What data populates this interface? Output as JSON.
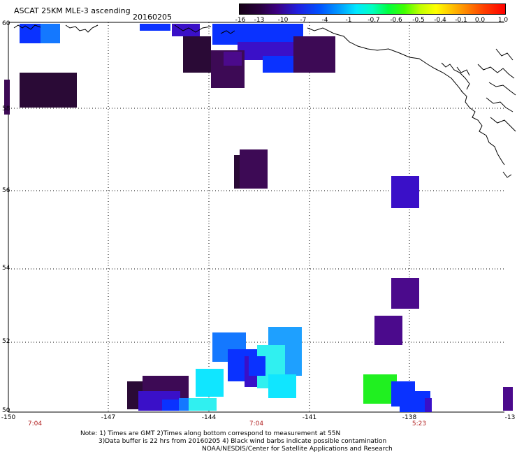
{
  "header": {
    "title": "ASCAT 25KM MLE-3 ascending",
    "date": "20160205"
  },
  "colorbar": {
    "labels": [
      "-16",
      "-13",
      "-10",
      "-7",
      "-4",
      "-1",
      "-0.7",
      "-0.6",
      "-0.5",
      "-0.4",
      "-0.1",
      "0.0",
      "1.0"
    ]
  },
  "axes": {
    "lon_ticks": [
      "-150",
      "-147",
      "-144",
      "-141",
      "-138",
      "-13"
    ],
    "lat_ticks": [
      "60",
      "58",
      "56",
      "54",
      "52",
      "50"
    ],
    "times": [
      "7:04",
      "7:04",
      "5:23"
    ]
  },
  "notes": {
    "line1": "Note: 1) Times are GMT 2)Times along bottom correspond to measurement at 55N",
    "line2": "3)Data buffer is 22 hrs from 20160205 4) Black wind barbs indicate possible contamination",
    "line3": "NOAA/NESDIS/Center for Satellite Applications and Research"
  },
  "palette": {
    "darkest": "#2a0a36",
    "dark_purple": "#3d0a55",
    "purple": "#4b0a8c",
    "indigo": "#3a10c8",
    "blue": "#0a32ff",
    "azure": "#1478ff",
    "sky": "#1ea0ff",
    "cyan": "#10e6ff",
    "aqua": "#30f0f0",
    "green": "#20f020"
  }
}
